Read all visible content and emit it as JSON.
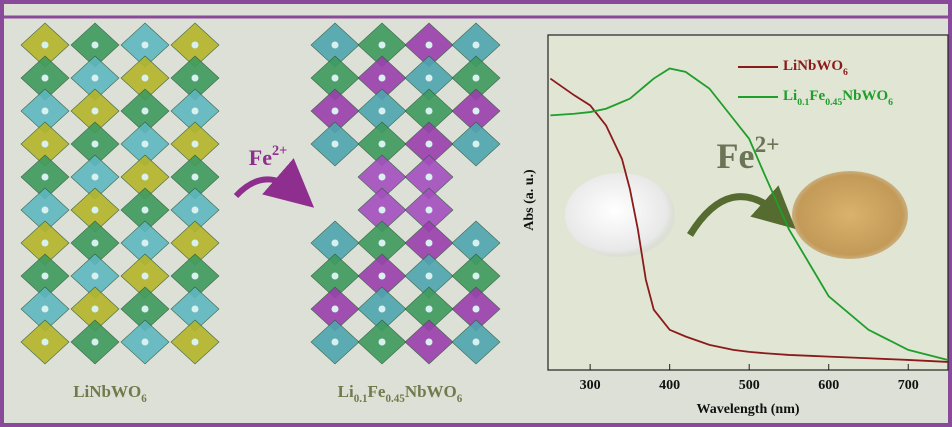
{
  "left_label": "LiNbWO6",
  "middle_label": "Li0.1Fe0.45NbWO6",
  "arrow_label": "Fe2+",
  "chart_data": {
    "type": "line",
    "ylabel": "Abs (a. u.)",
    "xlabel": "Wavelength (nm)",
    "annotation": "Fe2+",
    "x": [
      250,
      280,
      300,
      320,
      340,
      350,
      360,
      370,
      380,
      400,
      420,
      450,
      480,
      500,
      520,
      550,
      580,
      600,
      650,
      700,
      750
    ],
    "series": [
      {
        "name": "LiNbWO6",
        "color": "#8b1a1a",
        "values": [
          0.87,
          0.82,
          0.79,
          0.73,
          0.63,
          0.54,
          0.42,
          0.27,
          0.18,
          0.12,
          0.1,
          0.075,
          0.06,
          0.054,
          0.05,
          0.045,
          0.042,
          0.04,
          0.035,
          0.03,
          0.024
        ]
      },
      {
        "name": "Li0.1Fe0.45NbWO6",
        "color": "#1e9e2a",
        "values": [
          0.76,
          0.765,
          0.77,
          0.78,
          0.8,
          0.81,
          0.83,
          0.85,
          0.87,
          0.9,
          0.89,
          0.84,
          0.75,
          0.69,
          0.58,
          0.42,
          0.3,
          0.22,
          0.12,
          0.06,
          0.03
        ]
      }
    ],
    "xlim": [
      247,
      750
    ],
    "ylim": [
      0,
      1
    ],
    "xticks": [
      300,
      400,
      500,
      600,
      700
    ],
    "legend": "upper right"
  }
}
